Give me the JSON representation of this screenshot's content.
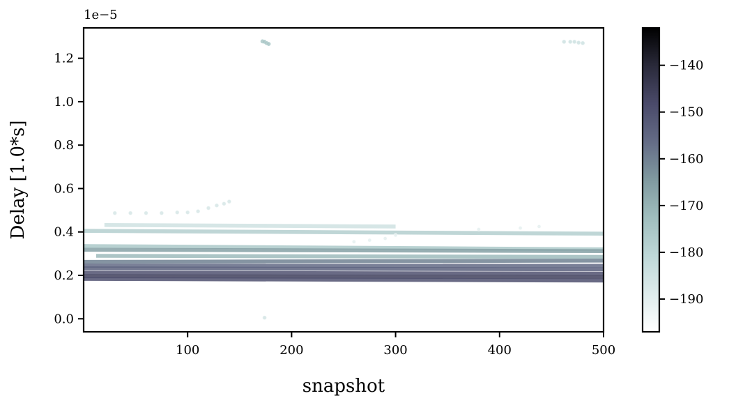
{
  "chart_data": {
    "type": "scatter",
    "title": "",
    "xlabel": "snapshot",
    "ylabel": "Delay [1.0*s]",
    "y_offset_label": "1e−5",
    "xlim": [
      0,
      500
    ],
    "ylim": [
      -0.06,
      1.34
    ],
    "y_scale_factor": 1e-05,
    "x_ticks": [
      100,
      200,
      300,
      400,
      500
    ],
    "x_tick_labels": [
      "100",
      "200",
      "300",
      "400",
      "500"
    ],
    "y_ticks": [
      0.0,
      0.2,
      0.4,
      0.6,
      0.8,
      1.0,
      1.2
    ],
    "y_tick_labels": [
      "0.0",
      "0.2",
      "0.4",
      "0.6",
      "0.8",
      "1.0",
      "1.2"
    ],
    "grid": false,
    "colorbar": {
      "colormap": "bone_r",
      "range": [
        -197,
        -132
      ],
      "ticks": [
        -140,
        -150,
        -160,
        -170,
        -180,
        -190
      ],
      "tick_labels": [
        "−140",
        "−150",
        "−160",
        "−170",
        "−180",
        "−190"
      ]
    },
    "bands": [
      {
        "y_start": 0.405,
        "y_end": 0.392,
        "x_start": 0,
        "x_end": 500,
        "color_value": -178
      },
      {
        "y_start": 0.432,
        "y_end": 0.425,
        "x_start": 20,
        "x_end": 300,
        "color_value": -185
      },
      {
        "y_start": 0.335,
        "y_end": 0.32,
        "x_start": 0,
        "x_end": 500,
        "color_value": -176
      },
      {
        "y_start": 0.318,
        "y_end": 0.312,
        "x_start": 0,
        "x_end": 500,
        "color_value": -166
      },
      {
        "y_start": 0.29,
        "y_end": 0.285,
        "x_start": 12,
        "x_end": 500,
        "color_value": -172
      },
      {
        "y_start": 0.262,
        "y_end": 0.268,
        "x_start": 0,
        "x_end": 500,
        "color_value": -160
      },
      {
        "y_start": 0.245,
        "y_end": 0.244,
        "x_start": 0,
        "x_end": 500,
        "color_value": -156
      },
      {
        "y_start": 0.232,
        "y_end": 0.228,
        "x_start": 0,
        "x_end": 500,
        "color_value": -154
      },
      {
        "y_start": 0.212,
        "y_end": 0.208,
        "x_start": 0,
        "x_end": 500,
        "color_value": -150
      },
      {
        "y_start": 0.196,
        "y_end": 0.192,
        "x_start": 0,
        "x_end": 500,
        "color_value": -146
      },
      {
        "y_start": 0.184,
        "y_end": 0.176,
        "x_start": 0,
        "x_end": 500,
        "color_value": -150
      }
    ],
    "sparse_series": [
      {
        "points": [
          [
            30,
            0.487
          ],
          [
            45,
            0.487
          ],
          [
            60,
            0.487
          ],
          [
            75,
            0.487
          ],
          [
            90,
            0.49
          ],
          [
            100,
            0.49
          ],
          [
            110,
            0.495
          ],
          [
            120,
            0.51
          ],
          [
            128,
            0.522
          ],
          [
            135,
            0.53
          ],
          [
            140,
            0.54
          ]
        ],
        "color_value": -186
      },
      {
        "points": [
          [
            260,
            0.355
          ],
          [
            275,
            0.362
          ],
          [
            290,
            0.37
          ],
          [
            300,
            0.385
          ],
          [
            380,
            0.412
          ],
          [
            420,
            0.418
          ],
          [
            438,
            0.425
          ]
        ],
        "color_value": -190
      },
      {
        "points": [
          [
            172,
            1.278
          ],
          [
            174,
            1.276
          ],
          [
            176,
            1.27
          ],
          [
            178,
            1.266
          ]
        ],
        "color_value": -174
      },
      {
        "points": [
          [
            462,
            1.276
          ],
          [
            468,
            1.276
          ],
          [
            472,
            1.276
          ],
          [
            476,
            1.272
          ],
          [
            480,
            1.27
          ]
        ],
        "color_value": -184
      },
      {
        "points": [
          [
            174,
            0.005
          ]
        ],
        "color_value": -185
      }
    ]
  }
}
